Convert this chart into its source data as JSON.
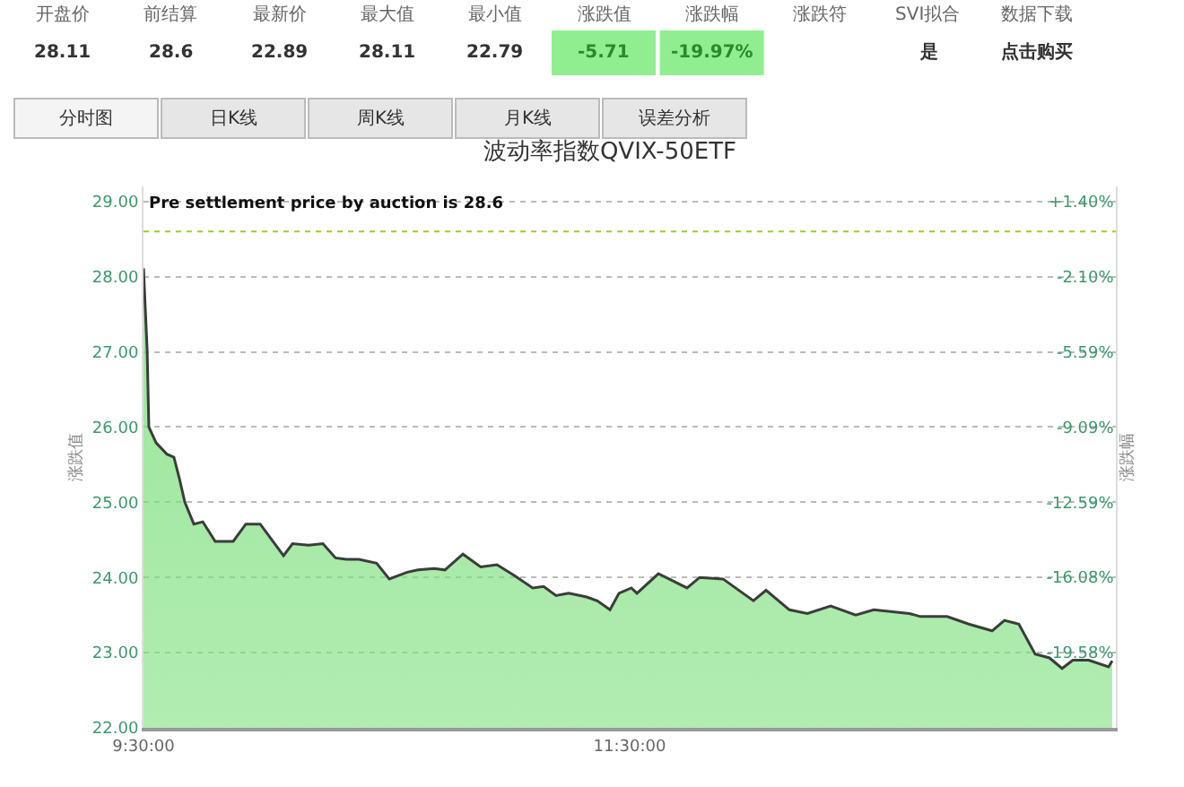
{
  "chart_data": {
    "type": "area",
    "title": "波动率指数QVIX-50ETF",
    "ylabel": "涨跌值",
    "y2label": "涨跌幅",
    "x": [
      9.5,
      9.515,
      9.522,
      9.552,
      9.596,
      9.625,
      9.648,
      9.67,
      9.707,
      9.744,
      9.795,
      9.869,
      9.921,
      9.98,
      10.076,
      10.113,
      10.179,
      10.238,
      10.29,
      10.334,
      10.386,
      10.459,
      10.511,
      10.585,
      10.629,
      10.696,
      10.74,
      10.814,
      10.887,
      10.954,
      11.028,
      11.101,
      11.146,
      11.197,
      11.249,
      11.323,
      11.367,
      11.419,
      11.456,
      11.507,
      11.53,
      11.618,
      11.662,
      11.736,
      11.788,
      11.884,
      12.009,
      12.061,
      12.157,
      12.231,
      12.327,
      12.43,
      12.504,
      12.651,
      12.696,
      12.806,
      12.895,
      12.991,
      13.042,
      13.101,
      13.168,
      13.227,
      13.279,
      13.323,
      13.389,
      13.47,
      13.485
    ],
    "series": [
      {
        "color": "#3c3c3c",
        "values": [
          28.11,
          27.02,
          26.0,
          25.79,
          25.64,
          25.6,
          25.31,
          25.0,
          24.71,
          24.74,
          24.48,
          24.48,
          24.71,
          24.71,
          24.29,
          24.45,
          24.43,
          24.45,
          24.26,
          24.24,
          24.24,
          24.19,
          23.98,
          24.07,
          24.1,
          24.12,
          24.1,
          24.31,
          24.14,
          24.17,
          24.02,
          23.86,
          23.88,
          23.76,
          23.79,
          23.74,
          23.69,
          23.57,
          23.79,
          23.86,
          23.79,
          24.05,
          23.98,
          23.86,
          24.0,
          23.98,
          23.69,
          23.83,
          23.57,
          23.52,
          23.62,
          23.5,
          23.57,
          23.52,
          23.48,
          23.48,
          23.38,
          23.29,
          23.43,
          23.38,
          22.98,
          22.93,
          22.79,
          22.9,
          22.9,
          22.81,
          22.89
        ]
      }
    ],
    "xlim": [
      9.5,
      13.5
    ],
    "xticks": [
      {
        "value": 9.5,
        "label": "9:30:00"
      },
      {
        "value": 11.5,
        "label": "11:30:00"
      }
    ],
    "ylim": [
      22,
      29.2
    ],
    "yticks": [
      {
        "value": 22,
        "label": "22.00"
      },
      {
        "value": 23,
        "label": "23.00"
      },
      {
        "value": 24,
        "label": "24.00"
      },
      {
        "value": 25,
        "label": "25.00"
      },
      {
        "value": 26,
        "label": "26.00"
      },
      {
        "value": 27,
        "label": "27.00"
      },
      {
        "value": 28,
        "label": "28.00"
      },
      {
        "value": 29,
        "label": "29.00"
      }
    ],
    "y2lim": [
      -23.08,
      2.1
    ],
    "y2ticks": [
      {
        "value": -19.58,
        "label": "-19.58%"
      },
      {
        "value": -16.08,
        "label": "-16.08%"
      },
      {
        "value": -12.59,
        "label": "-12.59%"
      },
      {
        "value": -9.09,
        "label": "-9.09%"
      },
      {
        "value": -5.59,
        "label": "-5.59%"
      },
      {
        "value": -2.1,
        "label": "-2.10%"
      },
      {
        "value": 1.4,
        "label": "+1.40%"
      }
    ],
    "ref_lines": [
      {
        "axis": "y",
        "value": 28.6,
        "label": "Pre settlement price by auction is 28.6",
        "color": "#9acd32",
        "line_style": "dotted"
      }
    ],
    "grid": "y",
    "annotations": [
      "开盘价",
      "前结算",
      "最新价",
      "最大值",
      "最小值",
      "涨跌值",
      "涨跌幅",
      "涨跌符",
      "SVI拟合",
      "数据下载",
      "28.11",
      "28.6",
      "22.89",
      "28.11",
      "22.79",
      "-5.71",
      "-19.97%",
      "是",
      "点击购买",
      "分时图",
      "日K线",
      "周K线",
      "月K线",
      "误差分析"
    ]
  }
}
